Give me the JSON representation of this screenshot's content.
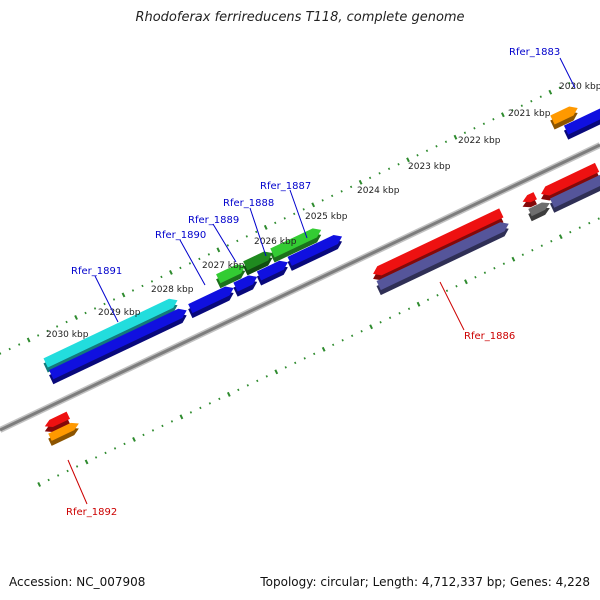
{
  "title": "Rhodoferax ferrireducens T118, complete genome",
  "footer": {
    "accession": "Accession: NC_007908",
    "topology": "Topology: circular; Length: 4,712,337 bp; Genes: 4,228"
  },
  "kbp_labels": [
    "2020 kbp",
    "2021 kbp",
    "2022 kbp",
    "2023 kbp",
    "2024 kbp",
    "2025 kbp",
    "2026 kbp",
    "2027 kbp",
    "2028 kbp",
    "2029 kbp",
    "2030 kbp"
  ],
  "gene_labels": [
    {
      "text": "Rfer_1883",
      "color": "#0000cc"
    },
    {
      "text": "Rfer_1887",
      "color": "#0000cc"
    },
    {
      "text": "Rfer_1888",
      "color": "#0000cc"
    },
    {
      "text": "Rfer_1889",
      "color": "#0000cc"
    },
    {
      "text": "Rfer_1890",
      "color": "#0000cc"
    },
    {
      "text": "Rfer_1891",
      "color": "#0000cc"
    },
    {
      "text": "Rfer_1886",
      "color": "#cc0000"
    },
    {
      "text": "Rfer_1892",
      "color": "#cc0000"
    }
  ],
  "colors": {
    "backbone": "#8c8c8c",
    "ticks": "#2e8b2e",
    "blue_gene": "#1010e0",
    "blue_gene_dark": "#0000a0",
    "red_gene": "#ee1111",
    "orange_gene": "#ff9900",
    "cyan_gene": "#22dddd",
    "green_gene": "#33cc33",
    "dark_green_gene": "#1f8a1f",
    "purple_gene": "#55559a",
    "gray_gene": "#6e6e6e"
  }
}
